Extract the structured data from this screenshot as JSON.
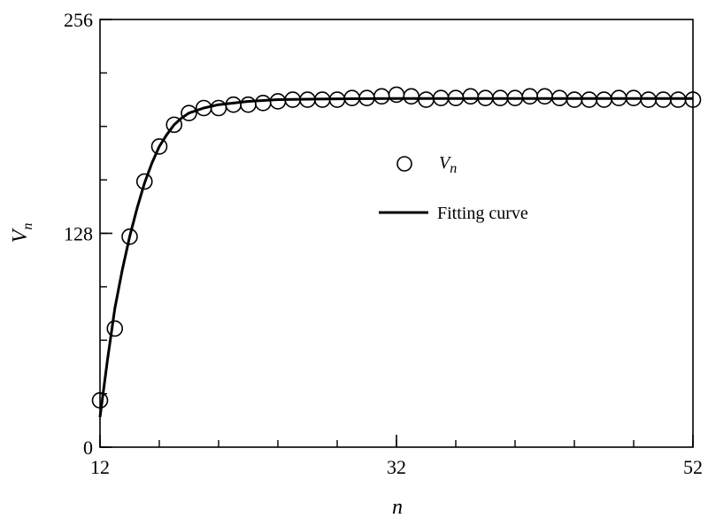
{
  "chart_data": {
    "type": "line",
    "xlabel": "n",
    "ylabel": {
      "main": "V",
      "sub": "n"
    },
    "xlim": [
      12,
      52
    ],
    "ylim": [
      0,
      256
    ],
    "x_ticks": [
      12,
      32,
      52
    ],
    "x_tick_labels": [
      "12",
      "32",
      "52"
    ],
    "x_minor_step": 4,
    "y_ticks": [
      0,
      128,
      256
    ],
    "y_tick_labels": [
      "0",
      "128",
      "256"
    ],
    "y_minor_step": 32,
    "grid": false,
    "legend_position": "center-right",
    "series": [
      {
        "name": {
          "main": "V",
          "sub": "n"
        },
        "kind": "scatter",
        "marker": "open-circle",
        "x": [
          12,
          13,
          14,
          15,
          16,
          17,
          18,
          19,
          20,
          21,
          22,
          23,
          24,
          25,
          26,
          27,
          28,
          29,
          30,
          31,
          32,
          33,
          34,
          35,
          36,
          37,
          38,
          39,
          40,
          41,
          42,
          43,
          44,
          45,
          46,
          47,
          48,
          49,
          50,
          51,
          52
        ],
        "y": [
          28,
          71,
          126,
          159,
          180,
          193,
          200,
          203,
          203,
          205,
          205,
          206,
          207,
          208,
          208,
          208,
          208,
          209,
          209,
          210,
          211,
          210,
          208,
          209,
          209,
          210,
          209,
          209,
          209,
          210,
          210,
          209,
          208,
          208,
          208,
          209,
          209,
          208,
          208,
          208,
          208
        ]
      },
      {
        "name": "Fitting curve",
        "kind": "line",
        "x": [
          12,
          12.5,
          13,
          13.5,
          14,
          14.5,
          15,
          15.5,
          16,
          16.5,
          17,
          17.5,
          18,
          19,
          20,
          21,
          22,
          23,
          24,
          26,
          28,
          30,
          32,
          36,
          40,
          44,
          48,
          52
        ],
        "y": [
          18,
          52,
          83,
          106,
          126,
          143,
          158,
          170,
          180,
          187,
          193,
          197,
          200,
          203,
          205,
          206,
          207,
          207.5,
          208,
          208.3,
          208.5,
          208.6,
          208.7,
          208.7,
          208.7,
          208.7,
          208.7,
          208.7
        ]
      }
    ]
  },
  "colors": {
    "axis": "#000000",
    "marker": "#000000",
    "line": "#000000"
  }
}
